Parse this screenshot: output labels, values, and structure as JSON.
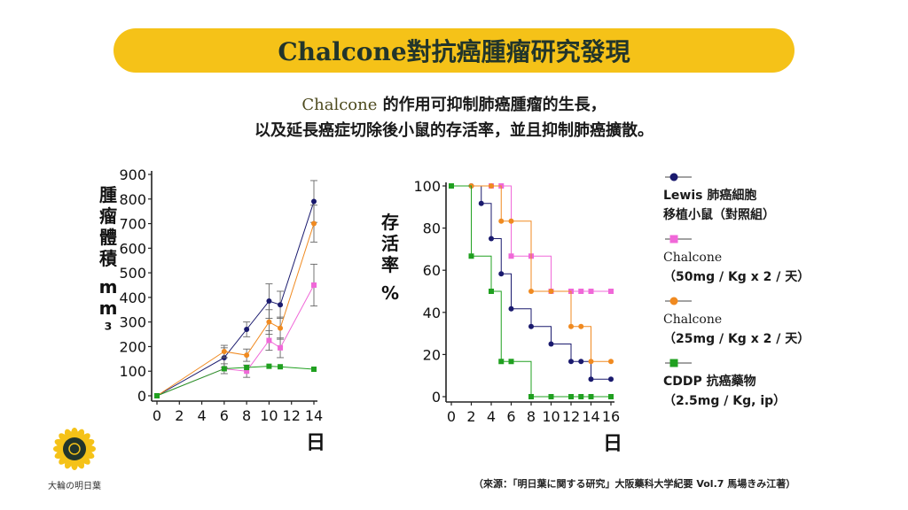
{
  "header": {
    "title": "Chalcone對抗癌腫瘤研究發現"
  },
  "subtitle": {
    "line1_en": "Chalcone",
    "line1_zh": " 的作用可抑制肺癌腫瘤的生長，",
    "line2": "以及延長癌症切除後小鼠的存活率，並且抑制肺癌擴散。"
  },
  "chart_data": [
    {
      "type": "line",
      "ylabel": "腫瘤體積 mm³",
      "xlabel": "日",
      "xlim": [
        0,
        14
      ],
      "ylim": [
        0,
        900
      ],
      "xticks": [
        "0",
        "2",
        "4",
        "6",
        "8",
        "10",
        "12",
        "14"
      ],
      "yticks": [
        "0",
        "100",
        "200",
        "300",
        "400",
        "500",
        "600",
        "700",
        "800",
        "900"
      ],
      "series": [
        {
          "name": "Lewis 肺癌細胞 移植小鼠（對照組）",
          "color": "#1a1a6e",
          "marker": "circle",
          "x": [
            0,
            6,
            8,
            10,
            11,
            14
          ],
          "y": [
            0,
            155,
            270,
            385,
            370,
            790
          ],
          "err": [
            0,
            40,
            30,
            70,
            55,
            85
          ]
        },
        {
          "name": "Chalcone (50mg / Kg x 2 / 天)",
          "color": "#f068d8",
          "marker": "square",
          "x": [
            0,
            6,
            8,
            10,
            11,
            14
          ],
          "y": [
            0,
            110,
            100,
            225,
            195,
            450
          ],
          "err": [
            0,
            20,
            25,
            40,
            40,
            85
          ]
        },
        {
          "name": "Chalcone (25mg / Kg x 2 / 天)",
          "color": "#f08a20",
          "marker": "circle",
          "x": [
            0,
            6,
            8,
            10,
            11,
            14
          ],
          "y": [
            0,
            180,
            165,
            300,
            275,
            700
          ],
          "err": [
            0,
            25,
            25,
            50,
            45,
            75
          ]
        },
        {
          "name": "CDDP 抗癌藥物 (2.5mg / Kg, ip)",
          "color": "#20a020",
          "marker": "square",
          "x": [
            0,
            6,
            8,
            10,
            11,
            14
          ],
          "y": [
            0,
            110,
            115,
            120,
            118,
            108
          ],
          "err": [
            0,
            0,
            0,
            0,
            0,
            0
          ]
        }
      ]
    },
    {
      "type": "line",
      "step": true,
      "ylabel": "存活率 %",
      "xlabel": "日",
      "xlim": [
        0,
        16
      ],
      "ylim": [
        0,
        100
      ],
      "xticks": [
        "0",
        "2",
        "4",
        "6",
        "8",
        "10",
        "12",
        "14",
        "16"
      ],
      "yticks": [
        "0",
        "20",
        "40",
        "60",
        "80",
        "100"
      ],
      "series": [
        {
          "name": "Lewis 肺癌細胞 移植小鼠（對照組）",
          "color": "#1a1a6e",
          "marker": "circle",
          "x": [
            0,
            2,
            3,
            4,
            5,
            6,
            8,
            10,
            12,
            13,
            14,
            16
          ],
          "y": [
            100,
            100,
            91.7,
            75,
            58.3,
            41.7,
            33.3,
            25,
            16.7,
            16.7,
            8.3,
            8.3
          ]
        },
        {
          "name": "Chalcone (50mg / Kg x 2 / 天)",
          "color": "#f068d8",
          "marker": "square",
          "x": [
            0,
            4,
            5,
            6,
            8,
            10,
            12,
            13,
            14,
            16
          ],
          "y": [
            100,
            100,
            100,
            66.7,
            66.7,
            50,
            50,
            50,
            50,
            50
          ]
        },
        {
          "name": "Chalcone (25mg / Kg x 2 / 天)",
          "color": "#f08a20",
          "marker": "circle",
          "x": [
            0,
            2,
            4,
            5,
            6,
            8,
            10,
            12,
            13,
            14,
            16
          ],
          "y": [
            100,
            100,
            100,
            83.3,
            83.3,
            50,
            50,
            33.3,
            33.3,
            16.7,
            16.7
          ]
        },
        {
          "name": "CDDP 抗癌藥物 (2.5mg / Kg, ip)",
          "color": "#20a020",
          "marker": "square",
          "x": [
            0,
            2,
            4,
            5,
            6,
            8,
            10,
            12,
            13,
            14,
            16
          ],
          "y": [
            100,
            66.7,
            50,
            16.7,
            16.7,
            0,
            0,
            0,
            0,
            0,
            0
          ]
        }
      ]
    }
  ],
  "legend": [
    {
      "line1": "Lewis 肺癌細胞",
      "line2": "移植小鼠（對照組）",
      "color": "#1a1a6e",
      "marker": "circle"
    },
    {
      "line1": "Chalcone",
      "line2": "（50mg / Kg x 2 / 天）",
      "color": "#f068d8",
      "marker": "square"
    },
    {
      "line1": "Chalcone",
      "line2": "（25mg / Kg x 2 / 天）",
      "color": "#f08a20",
      "marker": "circle"
    },
    {
      "line1": "CDDP 抗癌藥物",
      "line2": "（2.5mg / Kg, ip）",
      "color": "#20a020",
      "marker": "square"
    }
  ],
  "source": "（來源：「明日葉に関する研究」大阪藥科大学紀要 Vol.7 馬場きみ江著）",
  "logo": {
    "text": "大輪の明日葉",
    "colors": {
      "ring": "#f5c218",
      "center": "#22352b"
    }
  }
}
